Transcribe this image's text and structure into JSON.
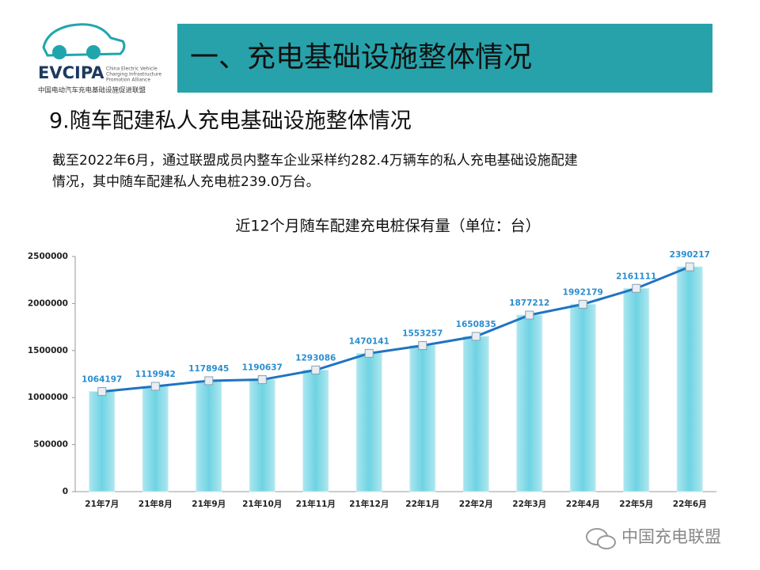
{
  "logo": {
    "name": "EVCIPA",
    "english": [
      "China Electric Vehicle",
      "Charging Infrastructure",
      "Promotion Alliance"
    ],
    "chinese": "中国电动汽车充电基础设施促进联盟"
  },
  "header": {
    "title": "一、充电基础设施整体情况"
  },
  "section": {
    "heading": "9.随车配建私人充电基础设施整体情况",
    "paragraph": [
      "截至2022年6月，通过联盟成员内整车企业采样约282.4万辆车的私人充电基础设施配建",
      "情况，其中随车配建私人充电桩239.0万台。"
    ]
  },
  "chart_data": {
    "type": "bar_line",
    "title": "近12个月随车配建充电桩保有量（单位：台）",
    "categories": [
      "21年7月",
      "21年8月",
      "21年9月",
      "21年10月",
      "21年11月",
      "21年12月",
      "22年1月",
      "22年2月",
      "22年3月",
      "22年4月",
      "22年5月",
      "22年6月"
    ],
    "values": [
      1064197,
      1119942,
      1178945,
      1190637,
      1293086,
      1470141,
      1553257,
      1650835,
      1877212,
      1992179,
      2161111,
      2390217
    ],
    "bar_color": "#7ad6e4",
    "line_color": "#1f73c2",
    "label_color": "#2a8ed0",
    "ylim": [
      0,
      2500000
    ],
    "yticks": [
      0,
      500000,
      1000000,
      1500000,
      2000000,
      2500000
    ]
  },
  "watermark": "中国充电联盟"
}
